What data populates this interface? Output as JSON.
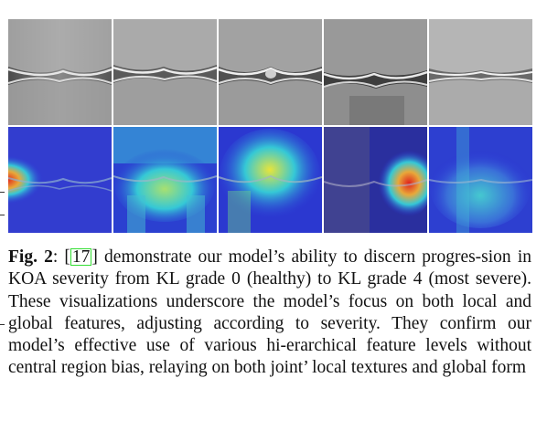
{
  "figure": {
    "xray_panels": [
      {
        "name": "xray-kl0"
      },
      {
        "name": "xray-kl1"
      },
      {
        "name": "xray-kl2"
      },
      {
        "name": "xray-kl3"
      },
      {
        "name": "xray-kl4"
      }
    ],
    "heatmap_panels": [
      {
        "name": "heatmap-kl0",
        "hotspot": "left-joint"
      },
      {
        "name": "heatmap-kl1",
        "hotspot": "diffuse"
      },
      {
        "name": "heatmap-kl2",
        "hotspot": "diffuse"
      },
      {
        "name": "heatmap-kl3",
        "hotspot": "right-joint"
      },
      {
        "name": "heatmap-kl4",
        "hotspot": "diffuse"
      }
    ],
    "colors": {
      "heat_low": "#2b33d6",
      "heat_mid": "#35c8d6",
      "heat_high": "#e8e43a",
      "heat_peak": "#e0201c",
      "cite_box": "#33dd33"
    }
  },
  "caption": {
    "label": "Fig. 2",
    "colon": ": ",
    "cite_open": "[",
    "cite_number": "17",
    "cite_close": "]",
    "body": " demonstrate our model’s ability to discern progres-sion in KOA severity from KL grade 0 (healthy) to KL grade 4 (most severe). These visualizations underscore the model’s focus on both local and global features, adjusting according to severity. They confirm our model’s effective use of various hi-erarchical feature levels without central region bias, relaying on both joint’ local textures and global form"
  }
}
